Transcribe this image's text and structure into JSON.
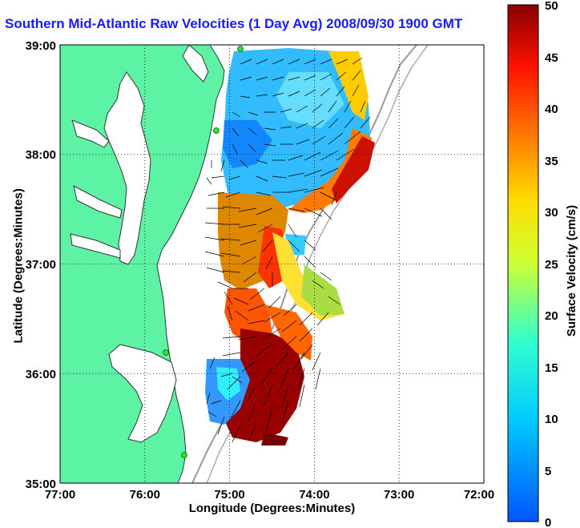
{
  "title": "Southern Mid-Atlantic Raw Velocities (1 Day Avg) 2008/09/30 1900 GMT",
  "xlabel": "Longitude (Degrees:Minutes)",
  "ylabel": "Latitude (Degrees:Minutes)",
  "colorbar": {
    "label": "Surface Velocity (cm/s)",
    "ticks": [
      "0",
      "5",
      "10",
      "15",
      "20",
      "25",
      "30",
      "35",
      "40",
      "45",
      "50"
    ]
  },
  "axes": {
    "x_ticks": [
      "77:00",
      "76:00",
      "75:00",
      "74:00",
      "73:00",
      "72:00"
    ],
    "y_ticks": [
      "39:00",
      "38:00",
      "37:00",
      "36:00",
      "35:00"
    ],
    "grid": true
  },
  "colors": {
    "land": "#5cf4a4",
    "title": "#1a1aff",
    "station": "#33dd33"
  }
}
